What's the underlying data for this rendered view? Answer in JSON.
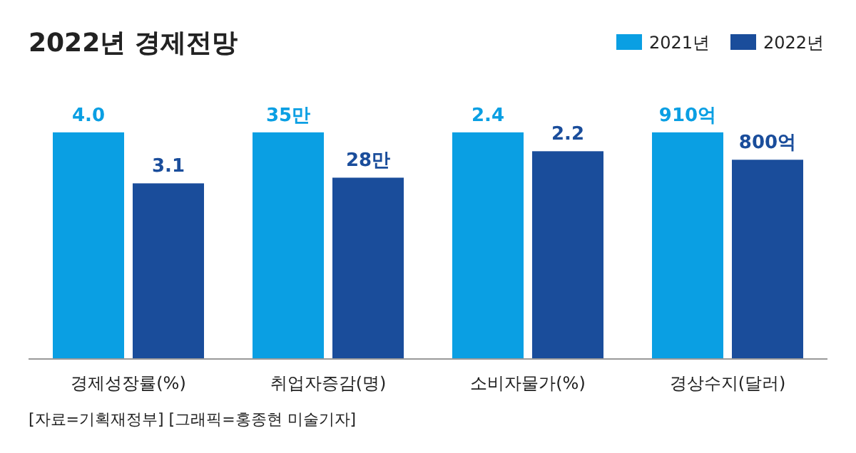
{
  "chart_data": [
    {
      "type": "bar",
      "title": "2022년 경제전망",
      "categories": [
        null
      ],
      "xlabel": "경제성장률(%)",
      "tick_labels": false,
      "legend": "top right",
      "annotations": [
        "[자료=기획재정부] [그래픽=홍종현 미술기자]"
      ],
      "series": [
        {
          "name": "2021년",
          "color": "#0a9fe3",
          "values": [
            4.0
          ],
          "value_labels": [
            "4.0"
          ]
        },
        {
          "name": "2022년",
          "color": "#1a4d9b",
          "values": [
            3.1
          ],
          "value_labels": [
            "3.1"
          ]
        }
      ]
    },
    {
      "type": "bar",
      "categories": [
        null
      ],
      "xlabel": "취업자증감(명)",
      "tick_labels": false,
      "series": [
        {
          "color": "#0a9fe3",
          "values": [
            35
          ],
          "value_labels": [
            "35만"
          ]
        },
        {
          "color": "#1a4d9b",
          "values": [
            28
          ],
          "value_labels": [
            "28만"
          ]
        }
      ]
    },
    {
      "type": "bar",
      "categories": [
        null
      ],
      "xlabel": "소비자물가(%)",
      "tick_labels": false,
      "series": [
        {
          "color": "#0a9fe3",
          "values": [
            2.4
          ],
          "value_labels": [
            "2.4"
          ]
        },
        {
          "color": "#1a4d9b",
          "values": [
            2.2
          ],
          "value_labels": [
            "2.2"
          ]
        }
      ]
    },
    {
      "type": "bar",
      "categories": [
        null
      ],
      "xlabel": "경상수지(달러)",
      "tick_labels": false,
      "series": [
        {
          "color": "#0a9fe3",
          "values": [
            910
          ],
          "value_labels": [
            "910억"
          ]
        },
        {
          "color": "#1a4d9b",
          "values": [
            800
          ],
          "value_labels": [
            "800억"
          ]
        }
      ]
    }
  ]
}
